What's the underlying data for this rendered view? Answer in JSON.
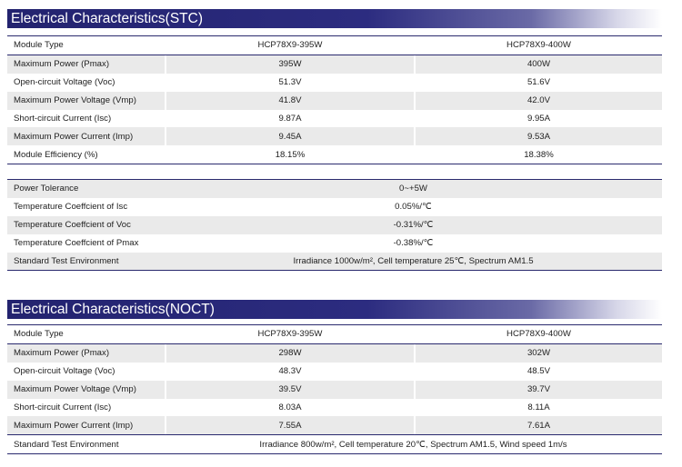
{
  "stc": {
    "title": "Electrical Characteristics(STC)",
    "header": {
      "label": "Module Type",
      "col1": "HCP78X9-395W",
      "col2": "HCP78X9-400W"
    },
    "rows": [
      {
        "label": "Maximum Power (Pmax)",
        "col1": "395W",
        "col2": "400W"
      },
      {
        "label": "Open-circuit Voltage (Voc)",
        "col1": "51.3V",
        "col2": "51.6V"
      },
      {
        "label": "Maximum Power Voltage (Vmp)",
        "col1": "41.8V",
        "col2": "42.0V"
      },
      {
        "label": "Short-circuit Current (Isc)",
        "col1": "9.87A",
        "col2": "9.95A"
      },
      {
        "label": "Maximum Power Current (Imp)",
        "col1": "9.45A",
        "col2": "9.53A"
      },
      {
        "label": "Module Efficiency (%)",
        "col1": "18.15%",
        "col2": "18.38%"
      }
    ]
  },
  "general": {
    "rows": [
      {
        "label": "Power Tolerance",
        "value": "0~+5W"
      },
      {
        "label": "Temperature Coeffcient of Isc",
        "value": "0.05%/℃"
      },
      {
        "label": "Temperature Coeffcient of Voc",
        "value": "-0.31%/℃"
      },
      {
        "label": "Temperature Coeffcient of Pmax",
        "value": "-0.38%/℃"
      }
    ],
    "env_label": "Standard Test Environment",
    "env_value": "Irradiance 1000w/m², Cell temperature 25℃, Spectrum AM1.5"
  },
  "noct": {
    "title": "Electrical Characteristics(NOCT)",
    "header": {
      "label": "Module Type",
      "col1": "HCP78X9-395W",
      "col2": "HCP78X9-400W"
    },
    "rows": [
      {
        "label": "Maximum Power (Pmax)",
        "col1": "298W",
        "col2": "302W"
      },
      {
        "label": "Open-circuit Voltage (Voc)",
        "col1": "48.3V",
        "col2": "48.5V"
      },
      {
        "label": "Maximum Power Voltage (Vmp)",
        "col1": "39.5V",
        "col2": "39.7V"
      },
      {
        "label": "Short-circuit Current (Isc)",
        "col1": "8.03A",
        "col2": "8.11A"
      },
      {
        "label": "Maximum Power Current (Imp)",
        "col1": "7.55A",
        "col2": "7.61A"
      }
    ],
    "env_label": "Standard Test Environment",
    "env_value": "Irradiance 800w/m², Cell temperature 20℃, Spectrum AM1.5, Wind speed 1m/s"
  }
}
